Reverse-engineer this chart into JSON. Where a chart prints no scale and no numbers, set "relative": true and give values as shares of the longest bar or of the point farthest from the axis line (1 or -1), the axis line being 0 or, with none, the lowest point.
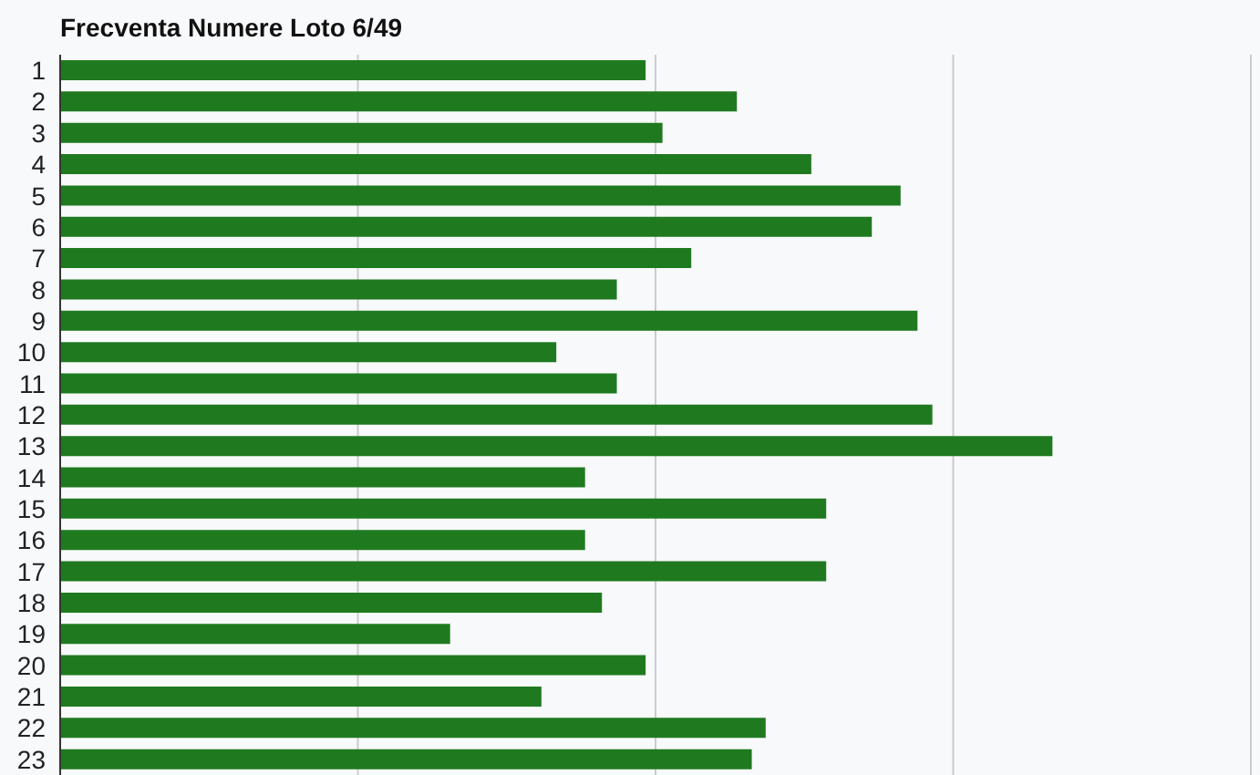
{
  "chart_data": {
    "type": "bar",
    "orientation": "horizontal",
    "relative": true,
    "title": "Frecventa Numere Loto 6/49",
    "categories": [
      "1",
      "2",
      "3",
      "4",
      "5",
      "6",
      "7",
      "8",
      "9",
      "10",
      "11",
      "12",
      "13",
      "14",
      "15",
      "16",
      "17",
      "18",
      "19",
      "20",
      "21",
      "22",
      "23"
    ],
    "values": [
      0.59,
      0.682,
      0.607,
      0.757,
      0.847,
      0.818,
      0.636,
      0.561,
      0.864,
      0.5,
      0.561,
      0.879,
      1,
      0.529,
      0.772,
      0.529,
      0.772,
      0.546,
      0.393,
      0.59,
      0.485,
      0.711,
      0.697
    ],
    "color": "#1f7a1f",
    "grid": "x"
  }
}
